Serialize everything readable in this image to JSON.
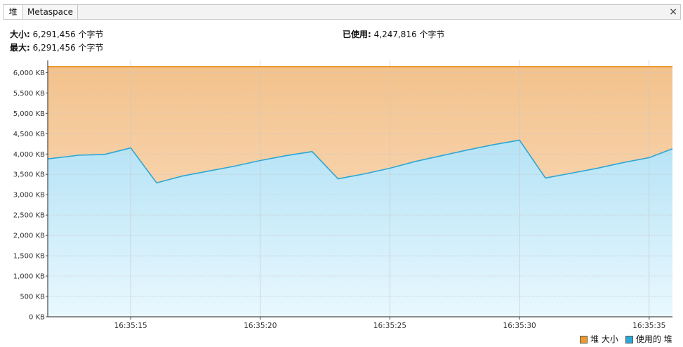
{
  "tabs": [
    {
      "label": "堆",
      "active": true
    },
    {
      "label": "Metaspace",
      "active": false
    }
  ],
  "close_glyph": "×",
  "stats": {
    "size_label": "大小:",
    "size_value": "6,291,456 个字节",
    "max_label": "最大:",
    "max_value": "6,291,456 个字节",
    "used_label": "已使用:",
    "used_value": "4,247,816 个字节"
  },
  "legend": {
    "size_label": "堆 大小",
    "used_label": "使用的 堆"
  },
  "colors": {
    "size_line": "#ec9a2f",
    "used_line": "#2ea7d4",
    "size_fill_top": "#f3c28c",
    "size_fill_bottom": "#fce4cc",
    "used_fill_top": "#b5e3f6",
    "used_fill_bottom": "#e9f8fe",
    "grid": "#c8c8c8"
  },
  "chart_data": {
    "type": "area",
    "xlabel": "",
    "ylabel": "",
    "ylim": [
      0,
      6300
    ],
    "y_unit": "KB",
    "y_ticks": [
      0,
      500,
      1000,
      1500,
      2000,
      2500,
      3000,
      3500,
      4000,
      4500,
      5000,
      5500,
      6000
    ],
    "y_tick_labels": [
      "0 KB",
      "500 KB",
      "1,000 KB",
      "1,500 KB",
      "2,000 KB",
      "2,500 KB",
      "3,000 KB",
      "3,500 KB",
      "4,000 KB",
      "4,500 KB",
      "5,000 KB",
      "5,500 KB",
      "6,000 KB"
    ],
    "x_tick_labels": [
      "16:35:15",
      "16:35:20",
      "16:35:25",
      "16:35:30",
      "16:35:35"
    ],
    "x_tick_seconds": [
      15,
      20,
      25,
      30,
      35
    ],
    "xlim_seconds": [
      11.8,
      35.9
    ],
    "grid": true,
    "legend_position": "bottom-right",
    "series": [
      {
        "name": "堆 大小",
        "x_seconds": [
          11.8,
          35.9
        ],
        "values": [
          6144,
          6144
        ]
      },
      {
        "name": "使用的 堆",
        "x_seconds": [
          11.8,
          13,
          14,
          15,
          16,
          17,
          18,
          19,
          20,
          21,
          22,
          23,
          24,
          25,
          26,
          27,
          28,
          29,
          30,
          31,
          32,
          33,
          34,
          35,
          35.9
        ],
        "values": [
          3880,
          3970,
          3990,
          4150,
          3290,
          3460,
          3580,
          3700,
          3840,
          3960,
          4060,
          3390,
          3510,
          3650,
          3820,
          3960,
          4100,
          4230,
          4340,
          3410,
          3530,
          3650,
          3790,
          3910,
          4130
        ]
      }
    ]
  }
}
